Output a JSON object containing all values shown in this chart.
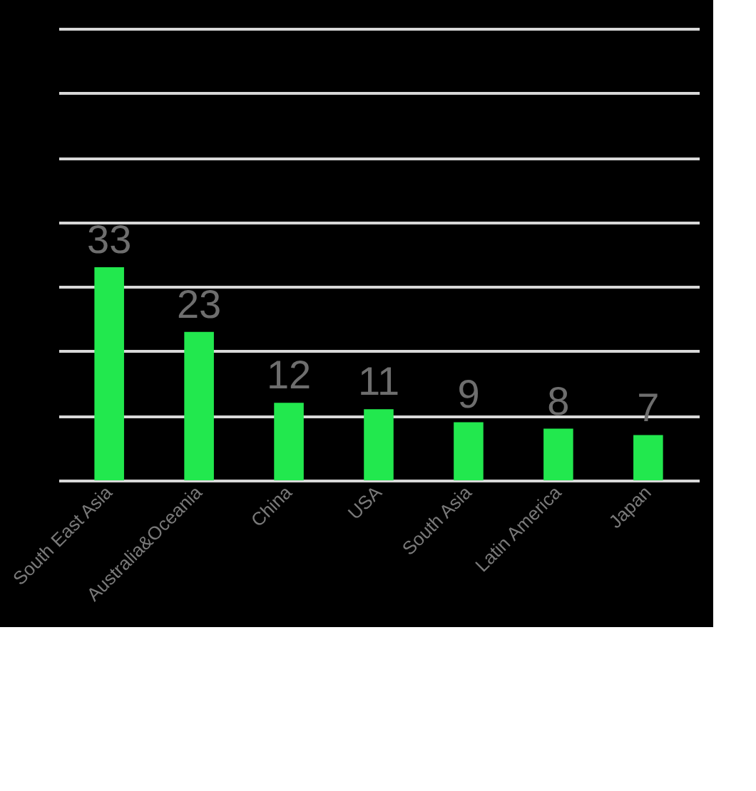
{
  "chart_data": {
    "type": "bar",
    "categories": [
      "South East Asia",
      "Australia&Oceania",
      "China",
      "USA",
      "South Asia",
      "Latin America",
      "Japan"
    ],
    "values": [
      33,
      23,
      12,
      11,
      9,
      8,
      7
    ],
    "color": "#22e84e",
    "data_labels": true,
    "ylim": [
      0,
      70
    ],
    "yticks": [
      {
        "value": 0,
        "label": null
      },
      {
        "value": 10,
        "label": null
      },
      {
        "value": 20,
        "label": null
      },
      {
        "value": 30,
        "label": null
      },
      {
        "value": 40,
        "label": null
      },
      {
        "value": 50,
        "label": null
      },
      {
        "value": 60,
        "label": null
      },
      {
        "value": 70,
        "label": null
      }
    ],
    "grid": "y",
    "tick_labels": "x"
  }
}
